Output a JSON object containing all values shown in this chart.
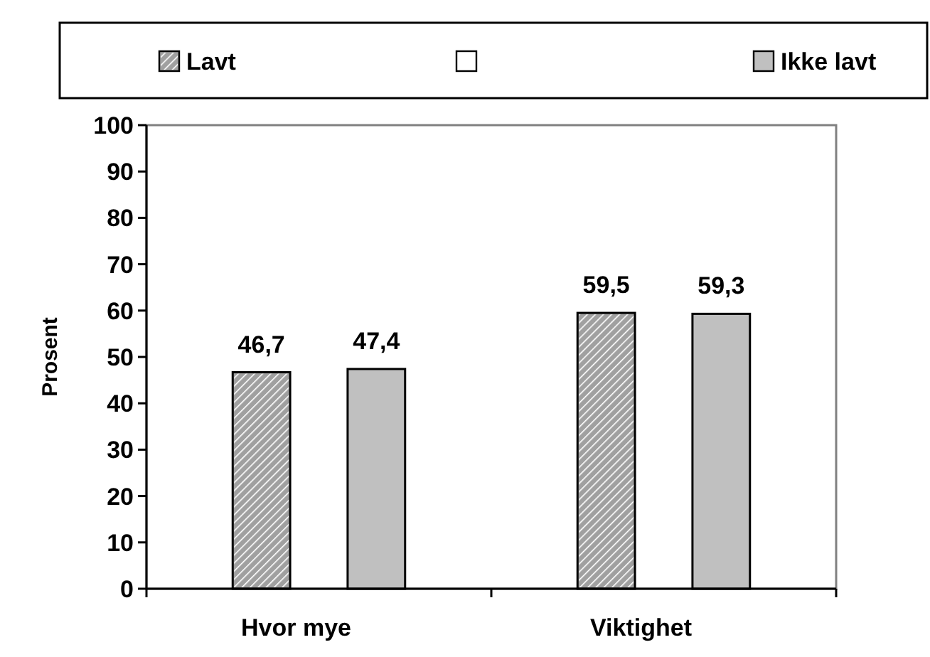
{
  "chart_data": {
    "type": "bar",
    "ylabel": "Prosent",
    "categories": [
      "Hvor mye",
      "Viktighet"
    ],
    "series": [
      {
        "name": "Lavt",
        "color": "#a0a0a0",
        "values": [
          46.7,
          59.5
        ],
        "value_labels": [
          "46,7",
          "59,5"
        ]
      },
      {
        "color": "#ffffff",
        "values": [
          null,
          null
        ]
      },
      {
        "name": "Ikke lavt",
        "color": "#c0c0c0",
        "values": [
          47.4,
          59.3
        ],
        "value_labels": [
          "47,4",
          "59,3"
        ]
      }
    ],
    "ylim": [
      0,
      100
    ],
    "yticks": [
      0,
      10,
      20,
      30,
      40,
      50,
      60,
      70,
      80,
      90,
      100
    ],
    "grid": false,
    "legend": "top"
  }
}
